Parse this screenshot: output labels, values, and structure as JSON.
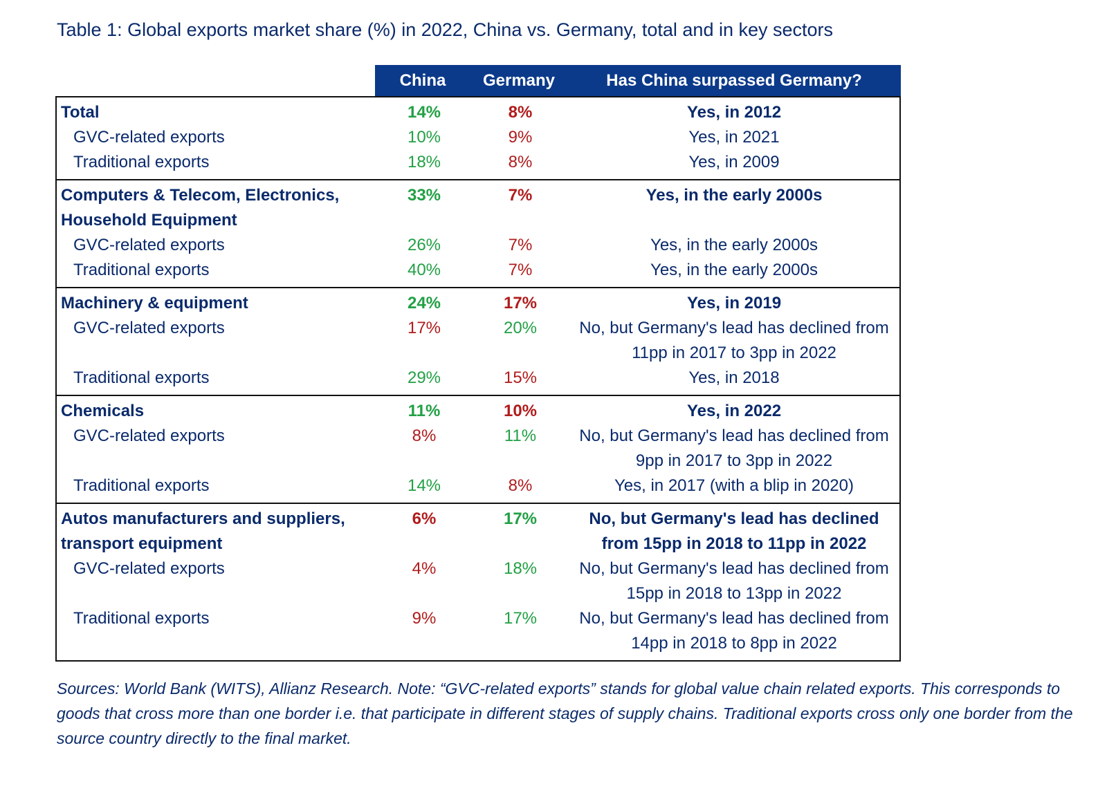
{
  "title": "Table 1: Global exports market share (%) in 2022, China vs. Germany, total and in key sectors",
  "headers": {
    "china": "China",
    "germany": "Germany",
    "question": "Has China surpassed Germany?"
  },
  "colors": {
    "header_bg": "#0c3a8a",
    "text_navy": "#0a2a6b",
    "green": "#22a045",
    "red": "#b01c1c"
  },
  "groups": [
    {
      "main": {
        "label": "Total",
        "china": "14%",
        "germany": "8%",
        "answer": "Yes, in 2012"
      },
      "subs": [
        {
          "label": "GVC-related exports",
          "china": "10%",
          "germany": "9%",
          "answer": "Yes, in 2021"
        },
        {
          "label": "Traditional exports",
          "china": "18%",
          "germany": "8%",
          "answer": "Yes, in 2009"
        }
      ]
    },
    {
      "main": {
        "label": "Computers & Telecom, Electronics, Household Equipment",
        "china": "33%",
        "germany": "7%",
        "answer": "Yes, in the early 2000s"
      },
      "subs": [
        {
          "label": "GVC-related exports",
          "china": "26%",
          "germany": "7%",
          "answer": "Yes, in the early 2000s"
        },
        {
          "label": "Traditional exports",
          "china": "40%",
          "germany": "7%",
          "answer": "Yes, in the early 2000s"
        }
      ]
    },
    {
      "main": {
        "label": "Machinery & equipment",
        "china": "24%",
        "germany": "17%",
        "answer": "Yes, in 2019"
      },
      "subs": [
        {
          "label": "GVC-related exports",
          "china": "17%",
          "germany": "20%",
          "answer": "No, but Germany's lead has declined from 11pp in 2017 to 3pp in 2022"
        },
        {
          "label": "Traditional exports",
          "china": "29%",
          "germany": "15%",
          "answer": "Yes, in 2018"
        }
      ]
    },
    {
      "main": {
        "label": "Chemicals",
        "china": "11%",
        "germany": "10%",
        "answer": "Yes, in 2022"
      },
      "subs": [
        {
          "label": "GVC-related exports",
          "china": "8%",
          "germany": "11%",
          "answer": "No, but Germany's lead has declined from 9pp in 2017 to 3pp in 2022"
        },
        {
          "label": "Traditional exports",
          "china": "14%",
          "germany": "8%",
          "answer": "Yes, in 2017 (with a blip in 2020)"
        }
      ]
    },
    {
      "main": {
        "label": "Autos manufacturers and suppliers, transport equipment",
        "china": "6%",
        "germany": "17%",
        "answer": "No, but Germany's lead has declined from 15pp in 2018 to 11pp in 2022"
      },
      "subs": [
        {
          "label": "GVC-related exports",
          "china": "4%",
          "germany": "18%",
          "answer": "No, but Germany's lead has declined from 15pp in 2018 to 13pp in 2022"
        },
        {
          "label": "Traditional exports",
          "china": "9%",
          "germany": "17%",
          "answer": "No, but Germany's lead has declined from 14pp in 2018 to 8pp in 2022"
        }
      ]
    }
  ],
  "notes": "Sources: World Bank (WITS), Allianz Research. Note: “GVC-related exports” stands for global value chain related exports. This corresponds to goods that cross more than one border i.e. that participate in different stages of supply chains. Traditional exports cross only one border from the source country directly to the final market."
}
